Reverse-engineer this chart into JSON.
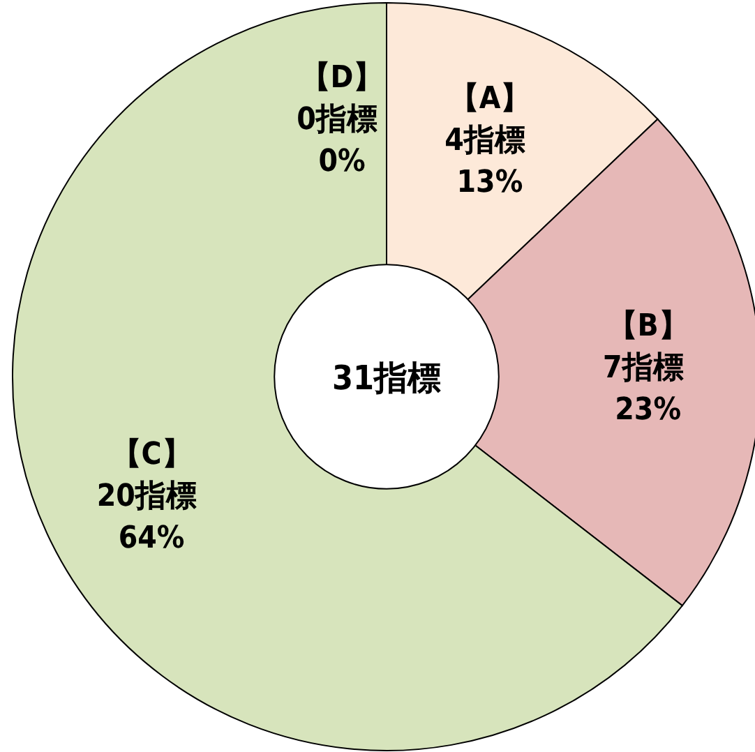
{
  "chart_data": {
    "type": "donut",
    "categories": [
      "【A】",
      "【B】",
      "【C】",
      "【D】"
    ],
    "values": [
      4,
      7,
      20,
      0
    ],
    "value_labels": [
      "4指標 13%",
      "7指標 23%",
      "20指標 64%",
      "0指標 0%"
    ],
    "colors": [
      "#fde9d9",
      "#e6b8b7",
      "#d7e4bc",
      null
    ],
    "annotations": [
      "31指標"
    ]
  }
}
